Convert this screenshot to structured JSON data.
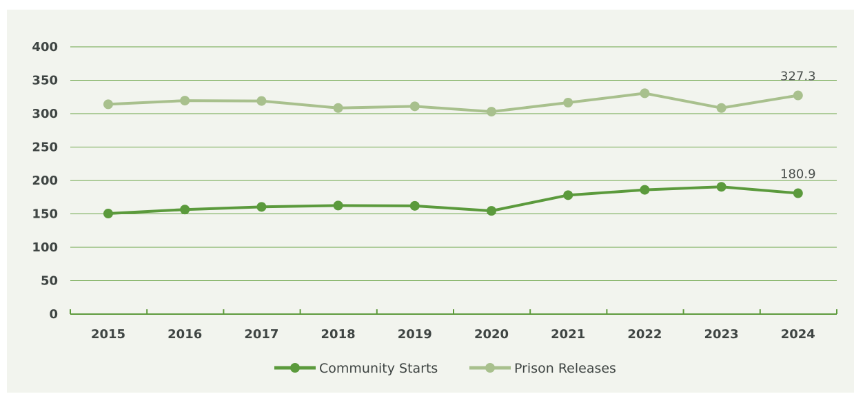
{
  "chart_data": {
    "type": "line",
    "categories": [
      "2015",
      "2016",
      "2017",
      "2018",
      "2019",
      "2020",
      "2021",
      "2022",
      "2023",
      "2024"
    ],
    "ylim": [
      0,
      400
    ],
    "yticks": [
      0,
      50,
      100,
      150,
      200,
      250,
      300,
      350,
      400
    ],
    "ytick_labels": [
      "0",
      "50",
      "100",
      "150",
      "200",
      "250",
      "300",
      "350",
      "400"
    ],
    "grid": true,
    "legend_position": "bottom-center",
    "series": [
      {
        "name": "Community Starts",
        "color": "#5b9a3c",
        "values": [
          150.5,
          156.5,
          160.5,
          162.5,
          162,
          154.5,
          178,
          186,
          190.5,
          180.9
        ],
        "end_label": "180.9"
      },
      {
        "name": "Prison Releases",
        "color": "#a8c08d",
        "values": [
          314,
          319.5,
          319,
          308.5,
          311,
          303,
          316.5,
          330.5,
          308.5,
          327.3
        ],
        "end_label": "327.3"
      }
    ]
  }
}
